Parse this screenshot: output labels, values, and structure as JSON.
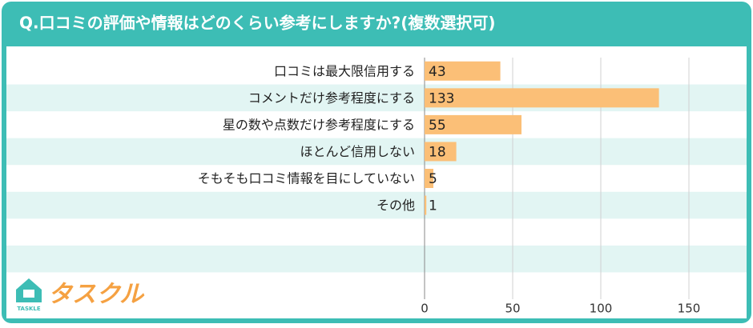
{
  "chart_data": {
    "type": "barh",
    "title": "Q.口コミの評価や情報はどのくらい参考にしますか?(複数選択可)",
    "categories": [
      "口コミは最大限信用する",
      "コメントだけ参考程度にする",
      "星の数や点数だけ参考程度にする",
      "ほとんど信用しない",
      "そもそも口コミ情報を目にしていない",
      "その他",
      null,
      null,
      null
    ],
    "values": [
      43,
      133,
      55,
      18,
      5,
      1,
      null,
      null,
      null
    ],
    "color": "#fbbf77",
    "xlim": [
      0,
      180
    ],
    "xticks": [
      0,
      50,
      100,
      150
    ],
    "grid": true
  },
  "logo": {
    "text": "タスクル",
    "subtext": "TASKLE"
  }
}
